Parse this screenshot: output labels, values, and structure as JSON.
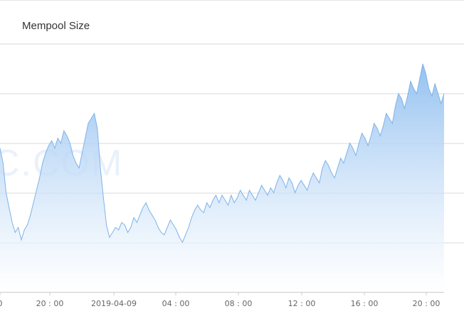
{
  "chart_data": {
    "type": "area",
    "title": "Mempool Size",
    "watermark": "C.COM",
    "xlabel": "",
    "ylabel": "",
    "x_tick_labels": [
      "0",
      "20 : 00",
      "2019-04-09",
      "04 : 00",
      "08 : 00",
      "12 : 00",
      "16 : 00",
      "20 : 00"
    ],
    "y_gridlines": 5,
    "grid": true,
    "colors": {
      "line": "#7eb3e8",
      "fill_top": "#8fbef0",
      "fill_bottom": "#ffffff",
      "grid": "#d9d9d9"
    },
    "series": [
      {
        "values": [
          0.58,
          0.52,
          0.4,
          0.34,
          0.28,
          0.24,
          0.26,
          0.21,
          0.25,
          0.27,
          0.31,
          0.36,
          0.41,
          0.46,
          0.52,
          0.56,
          0.59,
          0.61,
          0.58,
          0.62,
          0.6,
          0.65,
          0.63,
          0.6,
          0.55,
          0.52,
          0.5,
          0.56,
          0.62,
          0.68,
          0.7,
          0.72,
          0.66,
          0.5,
          0.38,
          0.27,
          0.22,
          0.24,
          0.26,
          0.25,
          0.28,
          0.27,
          0.24,
          0.26,
          0.3,
          0.28,
          0.31,
          0.34,
          0.36,
          0.33,
          0.31,
          0.29,
          0.26,
          0.24,
          0.23,
          0.26,
          0.29,
          0.27,
          0.25,
          0.22,
          0.2,
          0.23,
          0.26,
          0.3,
          0.33,
          0.35,
          0.33,
          0.32,
          0.36,
          0.34,
          0.37,
          0.39,
          0.36,
          0.39,
          0.37,
          0.35,
          0.39,
          0.36,
          0.38,
          0.41,
          0.39,
          0.37,
          0.41,
          0.39,
          0.37,
          0.4,
          0.43,
          0.41,
          0.39,
          0.42,
          0.4,
          0.44,
          0.47,
          0.45,
          0.42,
          0.46,
          0.44,
          0.4,
          0.43,
          0.45,
          0.43,
          0.41,
          0.45,
          0.48,
          0.46,
          0.44,
          0.5,
          0.53,
          0.51,
          0.48,
          0.46,
          0.5,
          0.54,
          0.52,
          0.56,
          0.6,
          0.58,
          0.55,
          0.6,
          0.64,
          0.62,
          0.59,
          0.63,
          0.68,
          0.66,
          0.63,
          0.67,
          0.72,
          0.7,
          0.68,
          0.75,
          0.8,
          0.78,
          0.74,
          0.79,
          0.85,
          0.82,
          0.8,
          0.86,
          0.92,
          0.88,
          0.82,
          0.79,
          0.84,
          0.8,
          0.76,
          0.8
        ]
      }
    ]
  }
}
